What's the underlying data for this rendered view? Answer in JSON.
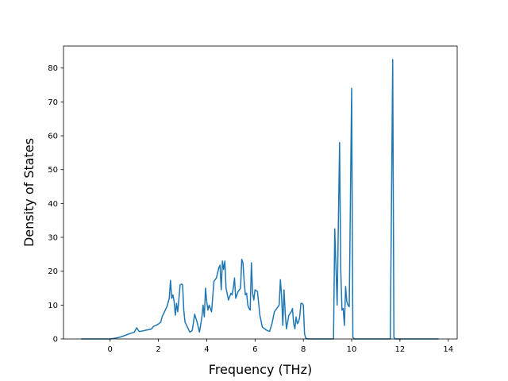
{
  "chart_data": {
    "type": "line",
    "title": "",
    "xlabel": "Frequency (THz)",
    "ylabel": "Density of States",
    "xlim": [
      -1.93,
      14.37
    ],
    "ylim": [
      0,
      86.5
    ],
    "xticks": [
      0,
      2,
      4,
      6,
      8,
      10,
      12,
      14
    ],
    "yticks": [
      0,
      10,
      20,
      30,
      40,
      50,
      60,
      70,
      80
    ],
    "grid": false,
    "legend": "none",
    "series": [
      {
        "color": "#1f77b4",
        "x": [
          -1.2,
          -1.0,
          -0.5,
          0.0,
          0.2,
          0.4,
          0.6,
          0.8,
          1.0,
          1.1,
          1.2,
          1.3,
          1.5,
          1.7,
          1.8,
          1.9,
          2.0,
          2.1,
          2.15,
          2.25,
          2.35,
          2.45,
          2.5,
          2.55,
          2.6,
          2.65,
          2.7,
          2.75,
          2.8,
          2.85,
          2.9,
          2.95,
          3.0,
          3.05,
          3.1,
          3.2,
          3.3,
          3.4,
          3.5,
          3.6,
          3.7,
          3.8,
          3.85,
          3.9,
          3.95,
          4.0,
          4.05,
          4.1,
          4.2,
          4.3,
          4.4,
          4.5,
          4.55,
          4.6,
          4.65,
          4.7,
          4.75,
          4.8,
          4.9,
          5.0,
          5.05,
          5.1,
          5.15,
          5.2,
          5.3,
          5.4,
          5.45,
          5.5,
          5.55,
          5.6,
          5.65,
          5.7,
          5.75,
          5.8,
          5.85,
          5.9,
          5.95,
          6.0,
          6.1,
          6.2,
          6.3,
          6.4,
          6.5,
          6.6,
          6.7,
          6.8,
          6.9,
          7.0,
          7.05,
          7.1,
          7.15,
          7.2,
          7.25,
          7.3,
          7.4,
          7.5,
          7.55,
          7.6,
          7.65,
          7.7,
          7.75,
          7.8,
          7.85,
          7.9,
          7.95,
          8.0,
          8.05,
          8.1,
          8.2,
          8.5,
          9.0,
          9.25,
          9.3,
          9.4,
          9.5,
          9.55,
          9.6,
          9.65,
          9.7,
          9.75,
          9.8,
          9.85,
          9.9,
          10.0,
          10.05,
          10.1,
          10.2,
          11.6,
          11.7,
          11.75,
          11.8,
          12.0,
          13.6
        ],
        "y": [
          0,
          0,
          0,
          0,
          0.2,
          0.5,
          1.0,
          1.5,
          2.0,
          3.3,
          2.2,
          2.3,
          2.6,
          2.9,
          3.7,
          4.0,
          4.4,
          5.0,
          6.5,
          8.0,
          9.5,
          12.0,
          17.3,
          12.0,
          13.0,
          11.0,
          7.0,
          10.5,
          8.0,
          12.0,
          16.0,
          16.2,
          16.0,
          8.5,
          5.0,
          3.5,
          2.0,
          2.5,
          7.3,
          5.0,
          2.0,
          6.5,
          10.0,
          6.5,
          15.0,
          11.0,
          8.5,
          10.0,
          8.0,
          17.0,
          18.0,
          21.0,
          21.8,
          14.5,
          23.0,
          20.5,
          23.0,
          15.0,
          11.5,
          13.5,
          13.0,
          15.0,
          18.0,
          12.0,
          14.0,
          15.0,
          23.5,
          22.5,
          17.0,
          13.0,
          13.5,
          10.0,
          9.0,
          8.5,
          22.5,
          13.5,
          11.5,
          14.5,
          14.0,
          7.0,
          3.5,
          3.0,
          2.5,
          2.2,
          4.5,
          8.0,
          9.0,
          10.0,
          17.5,
          12.5,
          4.0,
          14.5,
          7.5,
          3.0,
          7.0,
          8.0,
          9.0,
          4.5,
          3.0,
          6.5,
          4.5,
          5.0,
          6.5,
          10.5,
          10.5,
          10.0,
          1.5,
          0.2,
          0,
          0,
          0,
          0,
          32.5,
          10.0,
          58.0,
          20.0,
          8.5,
          9.0,
          4.0,
          15.5,
          11.0,
          10.0,
          9.5,
          74.0,
          0.5,
          0,
          0,
          0,
          82.5,
          0.5,
          0,
          0,
          0
        ]
      }
    ]
  }
}
